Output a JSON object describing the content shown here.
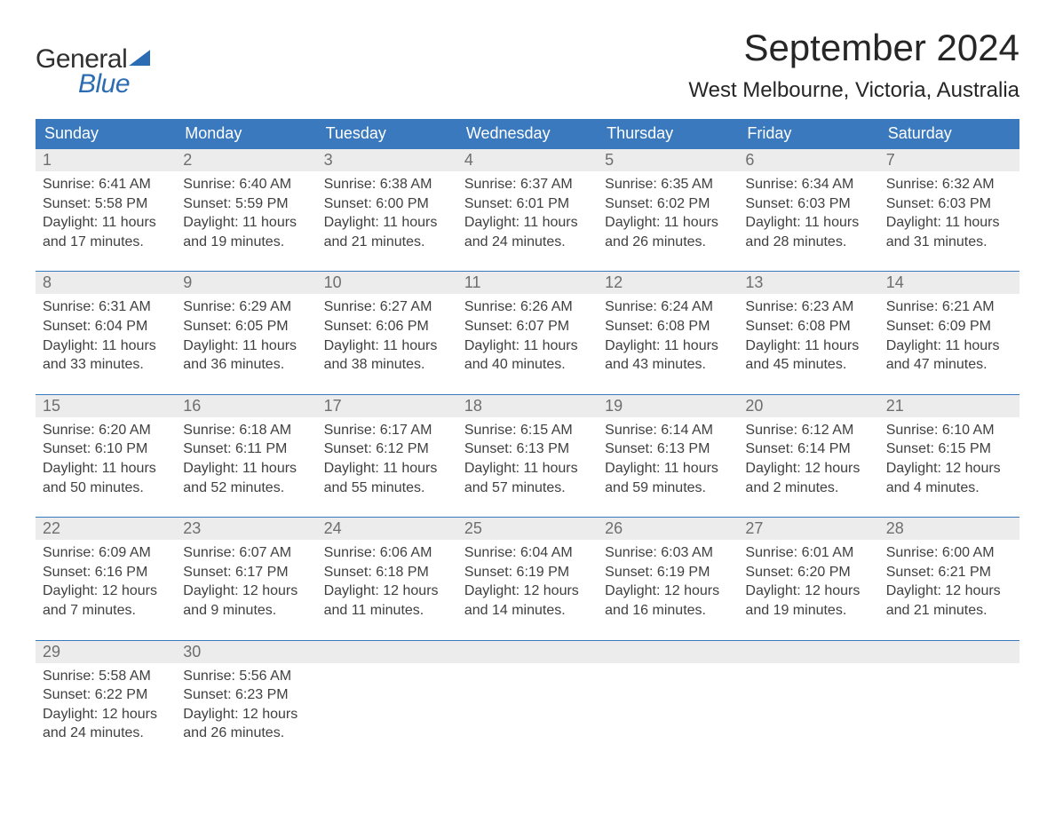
{
  "brand": {
    "word1": "General",
    "word2": "Blue"
  },
  "title": "September 2024",
  "location": "West Melbourne, Victoria, Australia",
  "colors": {
    "header_bg": "#3a79bd",
    "header_text": "#ffffff",
    "daynum_bg": "#ececec",
    "daynum_text": "#6e6e6e",
    "body_text": "#404040",
    "rule": "#3a79bd",
    "brand_blue": "#2b6cb3"
  },
  "day_names": [
    "Sunday",
    "Monday",
    "Tuesday",
    "Wednesday",
    "Thursday",
    "Friday",
    "Saturday"
  ],
  "weeks": [
    [
      {
        "n": "1",
        "sr": "Sunrise: 6:41 AM",
        "ss": "Sunset: 5:58 PM",
        "d1": "Daylight: 11 hours",
        "d2": "and 17 minutes."
      },
      {
        "n": "2",
        "sr": "Sunrise: 6:40 AM",
        "ss": "Sunset: 5:59 PM",
        "d1": "Daylight: 11 hours",
        "d2": "and 19 minutes."
      },
      {
        "n": "3",
        "sr": "Sunrise: 6:38 AM",
        "ss": "Sunset: 6:00 PM",
        "d1": "Daylight: 11 hours",
        "d2": "and 21 minutes."
      },
      {
        "n": "4",
        "sr": "Sunrise: 6:37 AM",
        "ss": "Sunset: 6:01 PM",
        "d1": "Daylight: 11 hours",
        "d2": "and 24 minutes."
      },
      {
        "n": "5",
        "sr": "Sunrise: 6:35 AM",
        "ss": "Sunset: 6:02 PM",
        "d1": "Daylight: 11 hours",
        "d2": "and 26 minutes."
      },
      {
        "n": "6",
        "sr": "Sunrise: 6:34 AM",
        "ss": "Sunset: 6:03 PM",
        "d1": "Daylight: 11 hours",
        "d2": "and 28 minutes."
      },
      {
        "n": "7",
        "sr": "Sunrise: 6:32 AM",
        "ss": "Sunset: 6:03 PM",
        "d1": "Daylight: 11 hours",
        "d2": "and 31 minutes."
      }
    ],
    [
      {
        "n": "8",
        "sr": "Sunrise: 6:31 AM",
        "ss": "Sunset: 6:04 PM",
        "d1": "Daylight: 11 hours",
        "d2": "and 33 minutes."
      },
      {
        "n": "9",
        "sr": "Sunrise: 6:29 AM",
        "ss": "Sunset: 6:05 PM",
        "d1": "Daylight: 11 hours",
        "d2": "and 36 minutes."
      },
      {
        "n": "10",
        "sr": "Sunrise: 6:27 AM",
        "ss": "Sunset: 6:06 PM",
        "d1": "Daylight: 11 hours",
        "d2": "and 38 minutes."
      },
      {
        "n": "11",
        "sr": "Sunrise: 6:26 AM",
        "ss": "Sunset: 6:07 PM",
        "d1": "Daylight: 11 hours",
        "d2": "and 40 minutes."
      },
      {
        "n": "12",
        "sr": "Sunrise: 6:24 AM",
        "ss": "Sunset: 6:08 PM",
        "d1": "Daylight: 11 hours",
        "d2": "and 43 minutes."
      },
      {
        "n": "13",
        "sr": "Sunrise: 6:23 AM",
        "ss": "Sunset: 6:08 PM",
        "d1": "Daylight: 11 hours",
        "d2": "and 45 minutes."
      },
      {
        "n": "14",
        "sr": "Sunrise: 6:21 AM",
        "ss": "Sunset: 6:09 PM",
        "d1": "Daylight: 11 hours",
        "d2": "and 47 minutes."
      }
    ],
    [
      {
        "n": "15",
        "sr": "Sunrise: 6:20 AM",
        "ss": "Sunset: 6:10 PM",
        "d1": "Daylight: 11 hours",
        "d2": "and 50 minutes."
      },
      {
        "n": "16",
        "sr": "Sunrise: 6:18 AM",
        "ss": "Sunset: 6:11 PM",
        "d1": "Daylight: 11 hours",
        "d2": "and 52 minutes."
      },
      {
        "n": "17",
        "sr": "Sunrise: 6:17 AM",
        "ss": "Sunset: 6:12 PM",
        "d1": "Daylight: 11 hours",
        "d2": "and 55 minutes."
      },
      {
        "n": "18",
        "sr": "Sunrise: 6:15 AM",
        "ss": "Sunset: 6:13 PM",
        "d1": "Daylight: 11 hours",
        "d2": "and 57 minutes."
      },
      {
        "n": "19",
        "sr": "Sunrise: 6:14 AM",
        "ss": "Sunset: 6:13 PM",
        "d1": "Daylight: 11 hours",
        "d2": "and 59 minutes."
      },
      {
        "n": "20",
        "sr": "Sunrise: 6:12 AM",
        "ss": "Sunset: 6:14 PM",
        "d1": "Daylight: 12 hours",
        "d2": "and 2 minutes."
      },
      {
        "n": "21",
        "sr": "Sunrise: 6:10 AM",
        "ss": "Sunset: 6:15 PM",
        "d1": "Daylight: 12 hours",
        "d2": "and 4 minutes."
      }
    ],
    [
      {
        "n": "22",
        "sr": "Sunrise: 6:09 AM",
        "ss": "Sunset: 6:16 PM",
        "d1": "Daylight: 12 hours",
        "d2": "and 7 minutes."
      },
      {
        "n": "23",
        "sr": "Sunrise: 6:07 AM",
        "ss": "Sunset: 6:17 PM",
        "d1": "Daylight: 12 hours",
        "d2": "and 9 minutes."
      },
      {
        "n": "24",
        "sr": "Sunrise: 6:06 AM",
        "ss": "Sunset: 6:18 PM",
        "d1": "Daylight: 12 hours",
        "d2": "and 11 minutes."
      },
      {
        "n": "25",
        "sr": "Sunrise: 6:04 AM",
        "ss": "Sunset: 6:19 PM",
        "d1": "Daylight: 12 hours",
        "d2": "and 14 minutes."
      },
      {
        "n": "26",
        "sr": "Sunrise: 6:03 AM",
        "ss": "Sunset: 6:19 PM",
        "d1": "Daylight: 12 hours",
        "d2": "and 16 minutes."
      },
      {
        "n": "27",
        "sr": "Sunrise: 6:01 AM",
        "ss": "Sunset: 6:20 PM",
        "d1": "Daylight: 12 hours",
        "d2": "and 19 minutes."
      },
      {
        "n": "28",
        "sr": "Sunrise: 6:00 AM",
        "ss": "Sunset: 6:21 PM",
        "d1": "Daylight: 12 hours",
        "d2": "and 21 minutes."
      }
    ],
    [
      {
        "n": "29",
        "sr": "Sunrise: 5:58 AM",
        "ss": "Sunset: 6:22 PM",
        "d1": "Daylight: 12 hours",
        "d2": "and 24 minutes."
      },
      {
        "n": "30",
        "sr": "Sunrise: 5:56 AM",
        "ss": "Sunset: 6:23 PM",
        "d1": "Daylight: 12 hours",
        "d2": "and 26 minutes."
      },
      null,
      null,
      null,
      null,
      null
    ]
  ]
}
